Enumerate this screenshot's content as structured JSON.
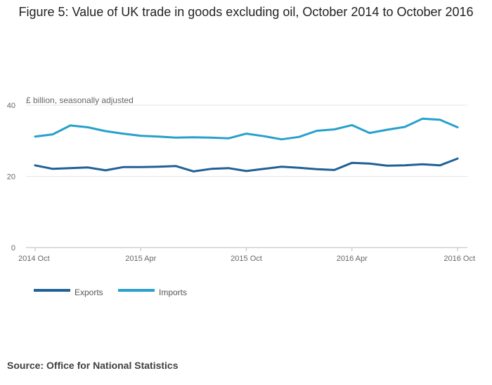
{
  "title": "Figure 5: Value of UK trade in goods excluding oil, October 2014 to October 2016",
  "source": "Source: Office for National Statistics",
  "chart_data": {
    "type": "line",
    "title": "Figure 5: Value of UK trade in goods excluding oil, October 2014 to October 2016",
    "ylabel": "£ billion, seasonally adjusted",
    "xlabel": "",
    "ylim": [
      0,
      40
    ],
    "yticks": [
      0,
      20,
      40
    ],
    "grid": true,
    "legend_position": "bottom-left",
    "x": [
      "2014 Oct",
      "2014 Nov",
      "2014 Dec",
      "2015 Jan",
      "2015 Feb",
      "2015 Mar",
      "2015 Apr",
      "2015 May",
      "2015 Jun",
      "2015 Jul",
      "2015 Aug",
      "2015 Sep",
      "2015 Oct",
      "2015 Nov",
      "2015 Dec",
      "2016 Jan",
      "2016 Feb",
      "2016 Mar",
      "2016 Apr",
      "2016 May",
      "2016 Jun",
      "2016 Jul",
      "2016 Aug",
      "2016 Sep",
      "2016 Oct"
    ],
    "xticks": [
      {
        "index": 0,
        "label": "2014 Oct"
      },
      {
        "index": 6,
        "label": "2015 Apr"
      },
      {
        "index": 12,
        "label": "2015 Oct"
      },
      {
        "index": 18,
        "label": "2016 Apr"
      },
      {
        "index": 24,
        "label": "2016 Oct"
      }
    ],
    "series": [
      {
        "name": "Exports",
        "color": "#206095",
        "values": [
          23.1,
          22.1,
          22.3,
          22.5,
          21.7,
          22.6,
          22.6,
          22.7,
          22.9,
          21.4,
          22.1,
          22.3,
          21.5,
          22.1,
          22.7,
          22.4,
          22.0,
          21.8,
          23.8,
          23.6,
          23.0,
          23.1,
          23.4,
          23.1,
          25.0
        ]
      },
      {
        "name": "Imports",
        "color": "#27a0cc",
        "values": [
          31.2,
          31.8,
          34.3,
          33.8,
          32.7,
          32.0,
          31.4,
          31.2,
          30.9,
          31.0,
          30.9,
          30.7,
          32.0,
          31.3,
          30.4,
          31.1,
          32.8,
          33.2,
          34.4,
          32.2,
          33.1,
          33.9,
          36.2,
          35.9,
          33.8
        ]
      }
    ]
  }
}
